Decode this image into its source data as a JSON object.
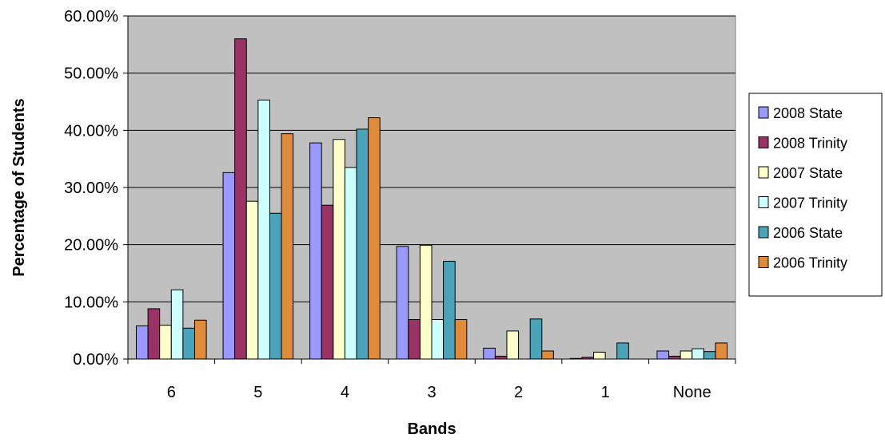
{
  "chart_data": {
    "type": "bar",
    "title": "",
    "xlabel": "Bands",
    "ylabel": "Percentage of Students",
    "categories": [
      "6",
      "5",
      "4",
      "3",
      "2",
      "1",
      "None"
    ],
    "ylim": [
      0,
      60
    ],
    "yticks": [
      0,
      10,
      20,
      30,
      40,
      50,
      60
    ],
    "ytick_labels": [
      "0.00%",
      "10.00%",
      "20.00%",
      "30.00%",
      "40.00%",
      "50.00%",
      "60.00%"
    ],
    "grid": true,
    "legend_position": "right",
    "plot_background": "#c0c0c0",
    "series": [
      {
        "name": "2008 State",
        "color": "#9999ff",
        "values": [
          5.8,
          32.6,
          37.8,
          19.7,
          1.9,
          0.1,
          1.4
        ]
      },
      {
        "name": "2008 Trinity",
        "color": "#993366",
        "values": [
          8.8,
          56.0,
          26.9,
          6.9,
          0.5,
          0.3,
          0.5
        ]
      },
      {
        "name": "2007 State",
        "color": "#ffffcc",
        "values": [
          5.9,
          27.6,
          38.4,
          19.9,
          4.9,
          1.2,
          1.4
        ]
      },
      {
        "name": "2007 Trinity",
        "color": "#ccffff",
        "values": [
          12.1,
          45.3,
          33.5,
          6.9,
          0.0,
          0.0,
          1.8
        ]
      },
      {
        "name": "2006 State",
        "color": "#4aa3b8",
        "values": [
          5.4,
          25.5,
          40.2,
          17.1,
          7.0,
          2.8,
          1.3
        ]
      },
      {
        "name": "2006 Trinity",
        "color": "#e08a3c",
        "values": [
          6.8,
          39.4,
          42.2,
          6.9,
          1.4,
          0.0,
          2.8
        ]
      }
    ]
  }
}
